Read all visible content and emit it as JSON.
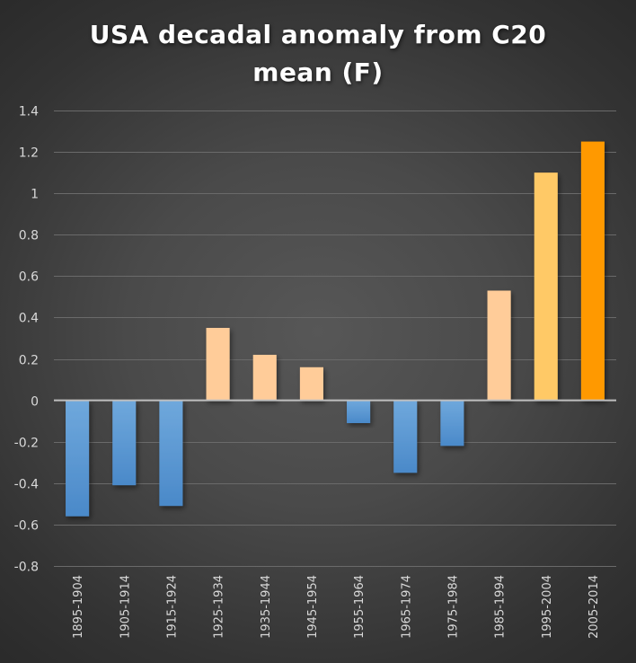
{
  "chart_data": {
    "type": "bar",
    "title_line1": "USA decadal anomaly from C20",
    "title_line2": "mean (F)",
    "xlabel": "",
    "ylabel": "",
    "ylim": [
      -0.8,
      1.4
    ],
    "yticks": [
      1.4,
      1.2,
      1,
      0.8,
      0.6,
      0.4,
      0.2,
      0,
      -0.2,
      -0.4,
      -0.6,
      -0.8
    ],
    "ytick_labels": [
      "1.4",
      "1.2",
      "1",
      "0.8",
      "0.6",
      "0.4",
      "0.2",
      "0",
      "-0.2",
      "-0.4",
      "-0.6",
      "-0.8"
    ],
    "grid": true,
    "legend": "none",
    "categories": [
      "1895-1904",
      "1905-1914",
      "1915-1924",
      "1925-1934",
      "1935-1944",
      "1945-1954",
      "1955-1964",
      "1965-1974",
      "1975-1984",
      "1985-1994",
      "1995-2004",
      "2005-2014"
    ],
    "values": [
      -0.56,
      -0.41,
      -0.51,
      0.35,
      0.22,
      0.16,
      -0.11,
      -0.35,
      -0.22,
      0.53,
      1.1,
      1.25
    ],
    "bar_colors": [
      "#5b9bd5",
      "#5b9bd5",
      "#5b9bd5",
      "#ffcc99",
      "#ffcc99",
      "#ffcc99",
      "#5b9bd5",
      "#5b9bd5",
      "#5b9bd5",
      "#ffcc99",
      "#ffc966",
      "#ff9900"
    ]
  }
}
